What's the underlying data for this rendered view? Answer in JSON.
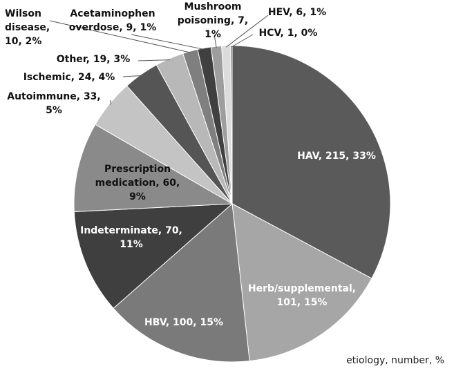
{
  "chart_data": {
    "type": "pie",
    "values": [
      215,
      101,
      100,
      70,
      60,
      33,
      24,
      19,
      10,
      9,
      7,
      6,
      1
    ],
    "value_labels": [
      "HAV, 215, 33%",
      "Herb/supplemental, 101, 15%",
      "HBV, 100, 15%",
      "Indeterminate, 70, 11%",
      "Prescription medication, 60, 9%",
      "Autoimmune, 33, 5%",
      "Ischemic, 24, 4%",
      "Other, 19, 3%",
      "Wilson disease, 10, 2%",
      "Acetaminophen overdose, 9, 1%",
      "Mushroom poisoning, 7, 1%",
      "HEV, 6, 1%",
      "HCV, 1, 0%"
    ],
    "colors": [
      "#5a5a5a",
      "#a6a6a6",
      "#7a7a7a",
      "#3f3f3f",
      "#8a8a8a",
      "#c4c4c4",
      "#555555",
      "#b8b8b8",
      "#7f7f7f",
      "#404040",
      "#9e9e9e",
      "#dcdcdc",
      "#5a5a5a"
    ],
    "caption": "etiology, number, %"
  }
}
